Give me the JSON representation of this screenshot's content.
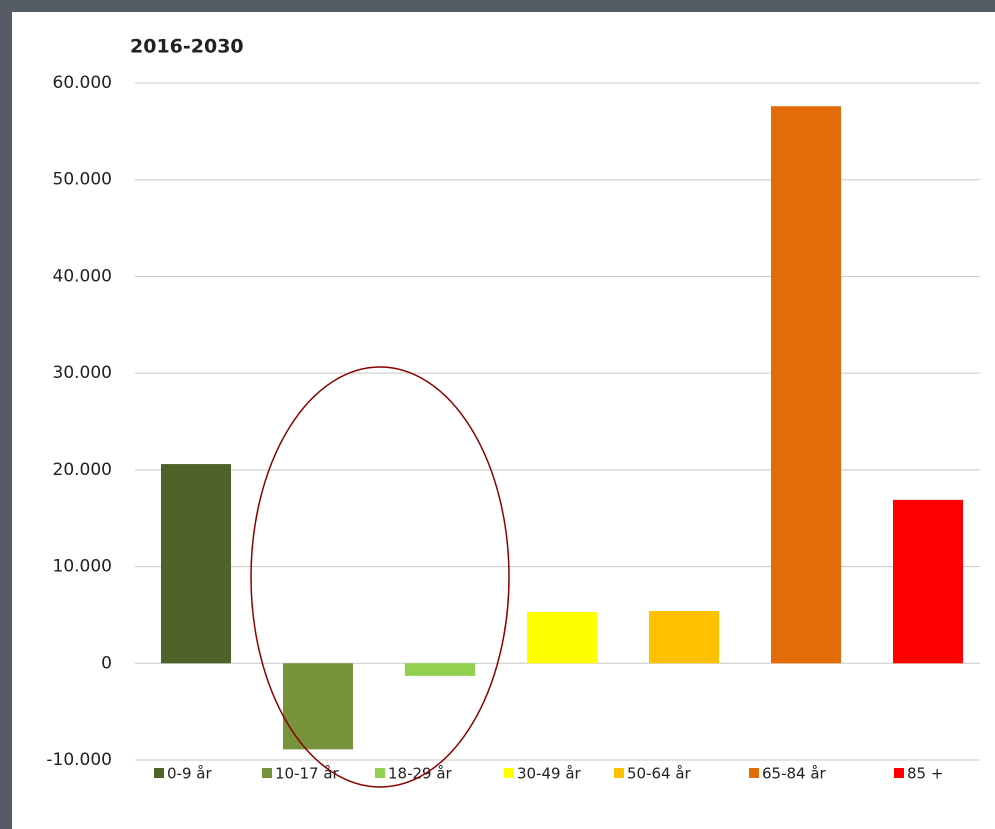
{
  "chart_data": {
    "type": "bar",
    "title": "2016-2030",
    "categories": [
      "0-9 år",
      "10-17 år",
      "18-29 år",
      "30-49 år",
      "50-64 år",
      "65-84 år",
      "85 +"
    ],
    "values": [
      20600,
      -8900,
      -1300,
      5300,
      5400,
      57600,
      16900
    ],
    "colors": [
      "#4f6228",
      "#77933c",
      "#92d050",
      "#ffff00",
      "#ffc000",
      "#e36c09",
      "#ff0000"
    ],
    "ylim": [
      -10000,
      60000
    ],
    "yticks": [
      {
        "value": -10000,
        "label": "-10.000"
      },
      0,
      {
        "value": 10000,
        "label": "10.000"
      },
      {
        "value": 20000,
        "label": "20.000"
      },
      {
        "value": 30000,
        "label": "30.000"
      },
      {
        "value": 40000,
        "label": "40.000"
      },
      {
        "value": 50000,
        "label": "50.000"
      },
      {
        "value": 60000,
        "label": "60.000"
      }
    ],
    "grid": true,
    "legend": "bottom"
  }
}
